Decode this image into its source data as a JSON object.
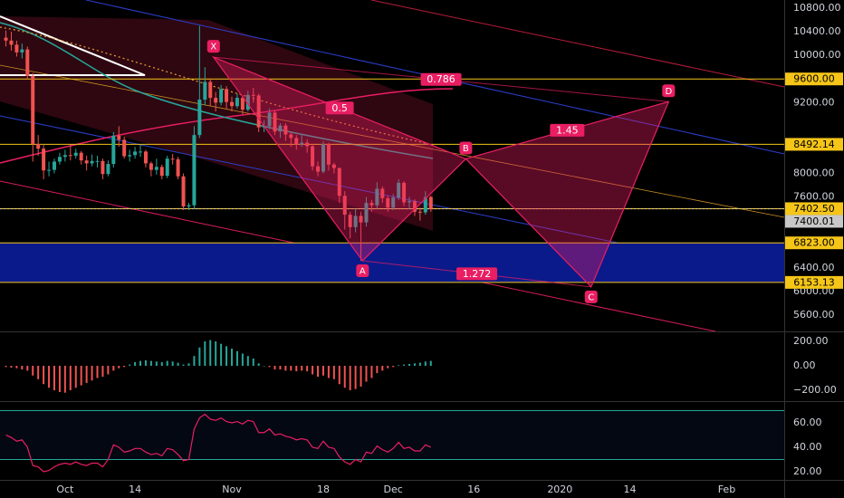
{
  "chart_data": [
    {
      "type": "candlestick",
      "x": [
        -11,
        -10,
        -9,
        -8,
        -7,
        -6,
        -5,
        -4,
        -3,
        -2,
        -1,
        0,
        1,
        2,
        3,
        4,
        5,
        6,
        7,
        8,
        9,
        10,
        11,
        12,
        13,
        14,
        15,
        16,
        17,
        18,
        19,
        20,
        21,
        22,
        23,
        24,
        25,
        26,
        27,
        28,
        29,
        30,
        31,
        32,
        33,
        34,
        35,
        36,
        37,
        38,
        39,
        40,
        41,
        42,
        43,
        44,
        45,
        46,
        47,
        48,
        49,
        50,
        51,
        52,
        53,
        54,
        55,
        56,
        57,
        58,
        59,
        60,
        61,
        62,
        63,
        64,
        65,
        66,
        67,
        68
      ],
      "open": [
        10300,
        10250,
        10180,
        10050,
        10100,
        9650,
        8500,
        8420,
        8050,
        8060,
        8200,
        8280,
        8310,
        8300,
        8350,
        8220,
        8170,
        8210,
        8210,
        7990,
        8160,
        8640,
        8570,
        8290,
        8310,
        8370,
        8370,
        8170,
        8060,
        8110,
        7960,
        8250,
        8240,
        7950,
        7440,
        7460,
        8650,
        9250,
        9550,
        9280,
        9200,
        9430,
        9210,
        9140,
        9280,
        9080,
        9330,
        9320,
        8780,
        8800,
        9030,
        8710,
        8810,
        8660,
        8600,
        8490,
        8520,
        8460,
        8120,
        8030,
        8500,
        8150,
        8090,
        7620,
        7300,
        7090,
        7280,
        7170,
        7500,
        7460,
        7740,
        7580,
        7420,
        7590,
        7840,
        7510,
        7530,
        7350,
        7340,
        7600
      ],
      "high": [
        10420,
        10400,
        10250,
        10200,
        10150,
        9700,
        8650,
        8480,
        8200,
        8250,
        8350,
        8400,
        8480,
        8420,
        8380,
        8300,
        8320,
        8300,
        8250,
        8220,
        8700,
        8800,
        8620,
        8400,
        8450,
        8480,
        8400,
        8200,
        8250,
        8150,
        8300,
        8330,
        8280,
        8000,
        7500,
        8800,
        10500,
        9800,
        9600,
        9380,
        9500,
        9480,
        9300,
        9350,
        9320,
        9400,
        9450,
        9350,
        8900,
        9100,
        9060,
        8850,
        8850,
        8700,
        8650,
        8650,
        8580,
        8500,
        8200,
        8550,
        8520,
        8180,
        8100,
        7700,
        7350,
        7400,
        7350,
        7600,
        7550,
        7850,
        7780,
        7620,
        7650,
        7900,
        7870,
        7600,
        7560,
        7420,
        7700,
        7620
      ],
      "low": [
        10150,
        10080,
        9980,
        9950,
        9600,
        8200,
        8300,
        7900,
        7950,
        8000,
        8150,
        8200,
        8220,
        8250,
        8150,
        8050,
        8120,
        8100,
        7900,
        7950,
        8100,
        8450,
        8250,
        8200,
        8250,
        8280,
        8100,
        7950,
        7980,
        7900,
        7920,
        8150,
        7900,
        7380,
        7380,
        7400,
        8600,
        9150,
        9150,
        9050,
        9150,
        9100,
        9050,
        9100,
        9000,
        9050,
        9200,
        8700,
        8700,
        8750,
        8650,
        8600,
        8550,
        8450,
        8400,
        8450,
        8350,
        8050,
        7950,
        8000,
        8050,
        8000,
        7500,
        7050,
        6900,
        7000,
        6520,
        7100,
        7350,
        7400,
        7500,
        7350,
        7380,
        7550,
        7450,
        7400,
        7280,
        7200,
        7300,
        7350
      ],
      "close": [
        10250,
        10180,
        10050,
        10100,
        9650,
        8500,
        8420,
        8050,
        8060,
        8200,
        8280,
        8310,
        8300,
        8350,
        8220,
        8170,
        8210,
        8210,
        7990,
        8160,
        8640,
        8570,
        8290,
        8310,
        8370,
        8370,
        8170,
        8060,
        8110,
        7960,
        8250,
        8240,
        7950,
        7440,
        7460,
        8650,
        9250,
        9550,
        9280,
        9200,
        9430,
        9210,
        9140,
        9280,
        9080,
        9330,
        9320,
        8780,
        8800,
        9030,
        8710,
        8810,
        8660,
        8600,
        8490,
        8520,
        8460,
        8120,
        8030,
        8500,
        8150,
        8090,
        7620,
        7300,
        7090,
        7280,
        7170,
        7500,
        7460,
        7740,
        7580,
        7420,
        7590,
        7840,
        7510,
        7530,
        7350,
        7340,
        7600,
        7400
      ],
      "up_color": "#26a69a",
      "down_color": "#ef5350",
      "xlim": [
        -12.1,
        133.7
      ],
      "xticks": [
        {
          "value": 0,
          "label": "Oct"
        },
        {
          "value": 13,
          "label": "14"
        },
        {
          "value": 31,
          "label": "Nov"
        },
        {
          "value": 48,
          "label": "18"
        },
        {
          "value": 61,
          "label": "Dec"
        },
        {
          "value": 76,
          "label": "16"
        },
        {
          "value": 92,
          "label": "2020"
        },
        {
          "value": 105,
          "label": "14"
        },
        {
          "value": 123,
          "label": "Feb"
        }
      ],
      "ylim": [
        5323,
        10938
      ],
      "yticks": [
        {
          "value": 10800,
          "label": "10800.00"
        },
        {
          "value": 10400,
          "label": "10400.00"
        },
        {
          "value": 10000,
          "label": "10000.00"
        },
        {
          "value": 9200,
          "label": "9200.00"
        },
        {
          "value": 8000,
          "label": "8000.00"
        },
        {
          "value": 7600,
          "label": "7600.00"
        },
        {
          "value": 6400,
          "label": "6400.00"
        },
        {
          "value": 6000,
          "label": "6000.00"
        },
        {
          "value": 5600,
          "label": "5600.00"
        }
      ],
      "price_lines": [
        {
          "value": 9600,
          "label": "9600.00",
          "color": "#f5c518"
        },
        {
          "value": 8492.14,
          "label": "8492.14",
          "color": "#f5c518"
        },
        {
          "value": 7400.01,
          "label": "7400.01",
          "color": "#c8c8c8",
          "dashed": true
        },
        {
          "value": 7402.5,
          "label": "7402.50",
          "color": "#f5c518"
        },
        {
          "value": 6823,
          "label": "6823.00",
          "color": "#f5c518"
        },
        {
          "value": 6153.13,
          "label": "6153.13",
          "color": "#f5c518"
        }
      ],
      "pattern": {
        "color": "#e91e63",
        "points": [
          {
            "label": "X",
            "x": 27.6,
            "y": 9970
          },
          {
            "label": "A",
            "x": 55.3,
            "y": 6520
          },
          {
            "label": "B",
            "x": 74.5,
            "y": 8246
          },
          {
            "label": "C",
            "x": 97.8,
            "y": 6077
          },
          {
            "label": "D",
            "x": 112.2,
            "y": 9215
          }
        ],
        "ratios": [
          0.5,
          0.786,
          1.272,
          1.45
        ]
      }
    },
    {
      "type": "bar",
      "x": [
        -11,
        -10,
        -9,
        -8,
        -7,
        -6,
        -5,
        -4,
        -3,
        -2,
        -1,
        0,
        1,
        2,
        3,
        4,
        5,
        6,
        7,
        8,
        9,
        10,
        11,
        12,
        13,
        14,
        15,
        16,
        17,
        18,
        19,
        20,
        21,
        22,
        23,
        24,
        25,
        26,
        27,
        28,
        29,
        30,
        31,
        32,
        33,
        34,
        35,
        36,
        37,
        38,
        39,
        40,
        41,
        42,
        43,
        44,
        45,
        46,
        47,
        48,
        49,
        50,
        51,
        52,
        53,
        54,
        55,
        56,
        57,
        58,
        59,
        60,
        61,
        62,
        63,
        64,
        65,
        66,
        67,
        68
      ],
      "values": [
        -10,
        -15,
        -20,
        -30,
        -40,
        -80,
        -110,
        -150,
        -180,
        -200,
        -215,
        -220,
        -200,
        -180,
        -160,
        -140,
        -120,
        -100,
        -90,
        -70,
        -40,
        -20,
        -10,
        10,
        30,
        40,
        45,
        40,
        35,
        30,
        40,
        35,
        25,
        10,
        20,
        80,
        150,
        200,
        210,
        200,
        180,
        160,
        140,
        120,
        100,
        80,
        60,
        20,
        0,
        -10,
        -30,
        -30,
        -40,
        -40,
        -45,
        -40,
        -45,
        -70,
        -90,
        -80,
        -100,
        -110,
        -150,
        -180,
        -200,
        -190,
        -170,
        -130,
        -100,
        -60,
        -40,
        -20,
        -10,
        5,
        10,
        15,
        20,
        25,
        35,
        40
      ],
      "up_color": "#26a69a",
      "down_color": "#ef5350",
      "ylim": [
        -289,
        274
      ],
      "yticks": [
        {
          "value": 200,
          "label": "200.00"
        },
        {
          "value": 0,
          "label": "0.00"
        },
        {
          "value": -200,
          "label": "−200.00"
        }
      ]
    },
    {
      "type": "line",
      "x": [
        -11,
        -10,
        -9,
        -8,
        -7,
        -6,
        -5,
        -4,
        -3,
        -2,
        -1,
        0,
        1,
        2,
        3,
        4,
        5,
        6,
        7,
        8,
        9,
        10,
        11,
        12,
        13,
        14,
        15,
        16,
        17,
        18,
        19,
        20,
        21,
        22,
        23,
        24,
        25,
        26,
        27,
        28,
        29,
        30,
        31,
        32,
        33,
        34,
        35,
        36,
        37,
        38,
        39,
        40,
        41,
        42,
        43,
        44,
        45,
        46,
        47,
        48,
        49,
        50,
        51,
        52,
        53,
        54,
        55,
        56,
        57,
        58,
        59,
        60,
        61,
        62,
        63,
        64,
        65,
        66,
        67,
        68
      ],
      "values": [
        50,
        48,
        45,
        46,
        40,
        25,
        24,
        20,
        21,
        24,
        26,
        27,
        26,
        28,
        26,
        25,
        27,
        27,
        24,
        30,
        42,
        40,
        36,
        37,
        39,
        39,
        36,
        34,
        35,
        33,
        39,
        38,
        34,
        29,
        30,
        55,
        64,
        67,
        63,
        62,
        64,
        61,
        60,
        61,
        59,
        62,
        61,
        52,
        52,
        55,
        50,
        51,
        49,
        48,
        46,
        47,
        46,
        40,
        39,
        45,
        40,
        39,
        32,
        28,
        26,
        30,
        28,
        36,
        35,
        41,
        38,
        36,
        39,
        44,
        39,
        40,
        37,
        37,
        42,
        40
      ],
      "color": "#e91e63",
      "bands": [
        70,
        30
      ],
      "band_color": "#26a69a",
      "ylim": [
        13.3,
        77
      ],
      "yticks": [
        {
          "value": 60,
          "label": "60.00"
        },
        {
          "value": 40,
          "label": "40.00"
        },
        {
          "value": 20,
          "label": "20.00"
        }
      ]
    }
  ]
}
